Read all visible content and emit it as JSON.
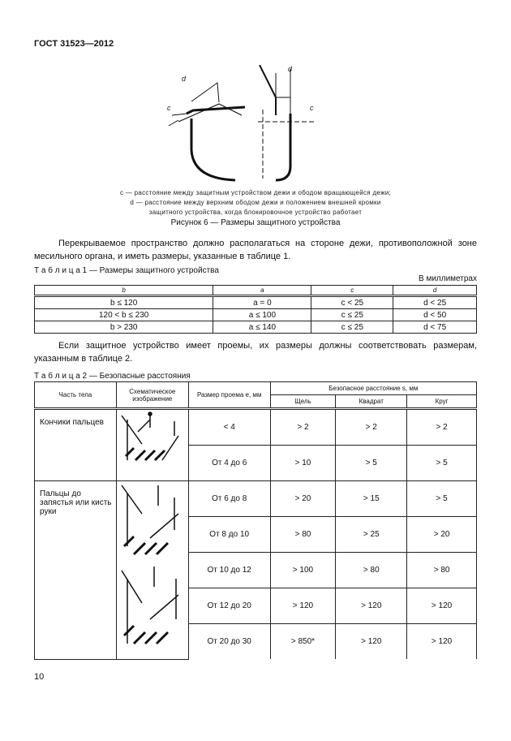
{
  "header": "ГОСТ 31523—2012",
  "figure": {
    "caption_c": "c — расстояние между защитным устройством дежи и ободом вращающейся дежи;",
    "caption_d": "d — расстояние между верхним ободом дежи и положением внешней кромки",
    "caption_d2": "защитного устройства, когда блокировочное устройство работает",
    "title": "Рисунок 6 — Размеры защитного устройства",
    "labels": {
      "c": "c",
      "d": "d"
    }
  },
  "para1": "Перекрываемое пространство должно располагаться на стороне дежи, противоположной зоне месильного органа, и иметь размеры, указанные в таблице 1.",
  "table1": {
    "title": "Т а б л и ц а  1 — Размеры защитного устройства",
    "units": "В миллиметрах",
    "headers": [
      "b",
      "a",
      "c",
      "d"
    ],
    "rows": [
      [
        "b ≤ 120",
        "a = 0",
        "c < 25",
        "d < 25"
      ],
      [
        "120 < b ≤ 230",
        "a ≤ 100",
        "c ≤ 25",
        "d < 50"
      ],
      [
        "b > 230",
        "a ≤ 140",
        "c ≤ 25",
        "d < 75"
      ]
    ]
  },
  "para2": "Если защитное устройство имеет проемы, их размеры должны соответствовать размерам, указанным в таблице 2.",
  "table2": {
    "title": "Т а б л и ц а  2 — Безопасные расстояния",
    "headers": {
      "body_part": "Часть тела",
      "schematic": "Схематическое изображение",
      "opening": "Размер проема e, мм",
      "safe": "Безопасное расстояние s, мм",
      "slot": "Щель",
      "square": "Квадрат",
      "circle": "Круг"
    },
    "groups": [
      {
        "body_part": "Кончики пальцев",
        "rows": [
          [
            "< 4",
            "> 2",
            "> 2",
            "> 2"
          ],
          [
            "От 4 до 6",
            "> 10",
            "> 5",
            "> 5"
          ]
        ]
      },
      {
        "body_part": "Пальцы до запястья или кисть руки",
        "rows": [
          [
            "От 6 до 8",
            "> 20",
            "> 15",
            "> 5"
          ],
          [
            "От 8 до 10",
            "> 80",
            "> 25",
            "> 20"
          ],
          [
            "От 10 до 12",
            "> 100",
            "> 80",
            "> 80"
          ],
          [
            "От 12 до 20",
            "> 120",
            "> 120",
            "> 120"
          ],
          [
            "От 20 до 30",
            "> 850*",
            "> 120",
            "> 120"
          ]
        ]
      }
    ]
  },
  "page_number": "10"
}
